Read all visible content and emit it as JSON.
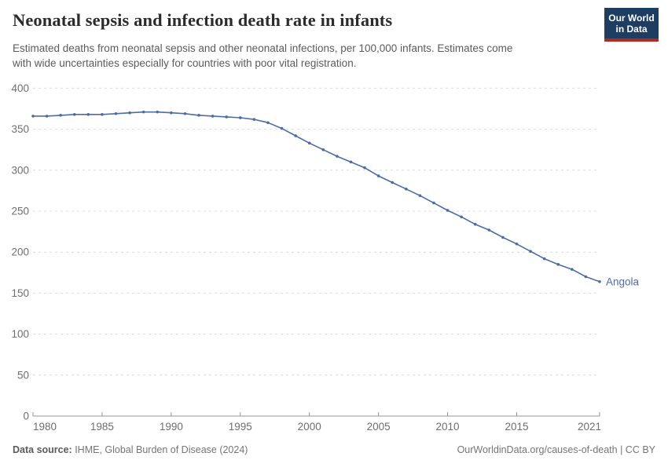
{
  "header": {
    "title": "Neonatal sepsis and infection death rate in infants",
    "subtitle_line1": "Estimated deaths from neonatal sepsis and other neonatal infections, per 100,000 infants. Estimates come",
    "subtitle_line2": "with wide uncertainties especially for countries with poor vital registration."
  },
  "logo": {
    "line1": "Our World",
    "line2": "in Data"
  },
  "chart_data": {
    "type": "line",
    "title": "Neonatal sepsis and infection death rate in infants",
    "x": [
      1980,
      1981,
      1982,
      1983,
      1984,
      1985,
      1986,
      1987,
      1988,
      1989,
      1990,
      1991,
      1992,
      1993,
      1994,
      1995,
      1996,
      1997,
      1998,
      1999,
      2000,
      2001,
      2002,
      2003,
      2004,
      2005,
      2006,
      2007,
      2008,
      2009,
      2010,
      2011,
      2012,
      2013,
      2014,
      2015,
      2016,
      2017,
      2018,
      2019,
      2020,
      2021
    ],
    "series": [
      {
        "name": "Angola",
        "color": "#4C6CA6",
        "values": [
          366,
          366,
          367,
          368,
          368,
          368,
          369,
          370,
          371,
          371,
          370,
          369,
          367,
          366,
          365,
          364,
          362,
          358,
          351,
          342,
          333,
          325,
          317,
          310,
          303,
          293,
          285,
          277,
          269,
          260,
          251,
          243,
          234,
          227,
          218,
          210,
          201,
          192,
          185,
          179,
          170,
          164
        ]
      }
    ],
    "xlabel": "",
    "ylabel": "",
    "ylim": [
      0,
      400
    ],
    "yticks": [
      0,
      50,
      100,
      150,
      200,
      250,
      300,
      350,
      400
    ],
    "xticks": [
      1980,
      1985,
      1990,
      1995,
      2000,
      2005,
      2010,
      2015,
      2021
    ],
    "grid": "horizontal-dashed",
    "legend_position": "end-of-line-label"
  },
  "footer": {
    "source_label": "Data source:",
    "source_text": " IHME, Global Burden of Disease (2024)",
    "link_text": "OurWorldinData.org/causes-of-death | CC BY"
  },
  "colors": {
    "line": "#4C6CA6",
    "grid": "#dcdcdc",
    "axis": "#949494",
    "tick_label": "#6e6e6e",
    "logo_bg": "#1d3d63",
    "logo_red": "#b5291d"
  }
}
